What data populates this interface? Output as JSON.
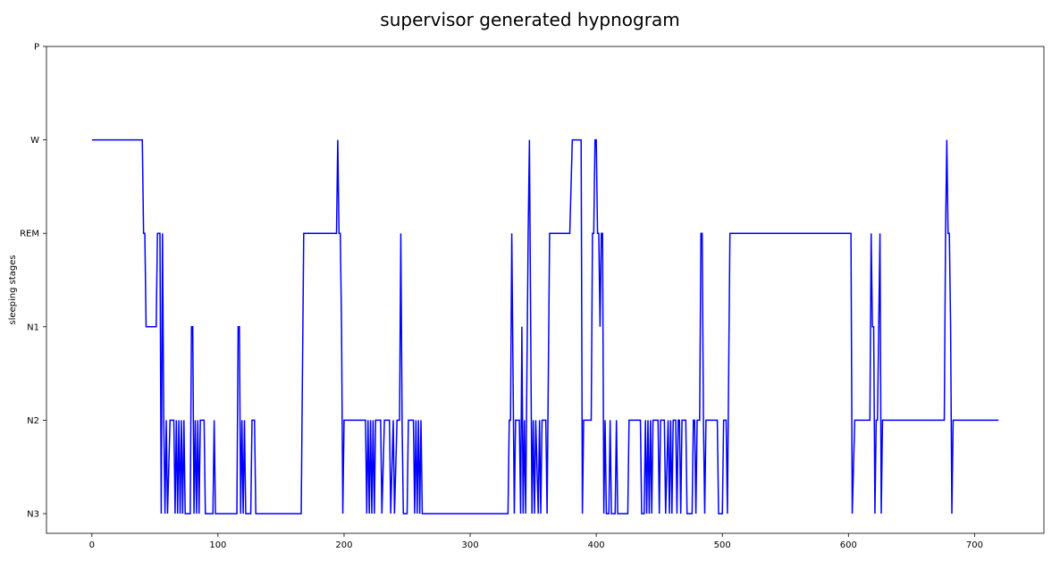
{
  "chart_data": {
    "type": "line",
    "title": "supervisor generated hypnogram",
    "xlabel": "",
    "ylabel": "sleeping stages",
    "xlim": [
      -36,
      755
    ],
    "ylim": [
      0,
      5
    ],
    "x_ticks": [
      0,
      100,
      200,
      300,
      400,
      500,
      600,
      700
    ],
    "y_ticks": [
      {
        "value": 0,
        "label": "N3"
      },
      {
        "value": 1,
        "label": "N2"
      },
      {
        "value": 2,
        "label": "N1"
      },
      {
        "value": 3,
        "label": "REM"
      },
      {
        "value": 4,
        "label": "W"
      },
      {
        "value": 5,
        "label": "P"
      }
    ],
    "grid": false,
    "series": [
      {
        "color": "#0000ff",
        "points": [
          [
            0,
            4
          ],
          [
            40,
            4
          ],
          [
            41,
            3
          ],
          [
            42,
            3
          ],
          [
            43,
            2
          ],
          [
            51,
            2
          ],
          [
            52,
            3
          ],
          [
            54,
            3
          ],
          [
            55,
            0
          ],
          [
            56,
            3
          ],
          [
            57,
            1
          ],
          [
            58,
            0
          ],
          [
            59,
            1
          ],
          [
            60,
            0
          ],
          [
            62,
            1
          ],
          [
            65,
            1
          ],
          [
            66,
            0
          ],
          [
            67,
            1
          ],
          [
            68,
            0
          ],
          [
            69,
            1
          ],
          [
            70,
            0
          ],
          [
            71,
            1
          ],
          [
            72,
            0
          ],
          [
            73,
            1
          ],
          [
            74,
            0
          ],
          [
            78,
            0
          ],
          [
            79,
            2
          ],
          [
            80,
            2
          ],
          [
            81,
            0
          ],
          [
            82,
            1
          ],
          [
            83,
            0
          ],
          [
            84,
            1
          ],
          [
            85,
            0
          ],
          [
            86,
            1
          ],
          [
            89,
            1
          ],
          [
            90,
            0
          ],
          [
            96,
            0
          ],
          [
            97,
            1
          ],
          [
            98,
            0
          ],
          [
            115,
            0
          ],
          [
            116,
            2
          ],
          [
            117,
            2
          ],
          [
            118,
            0
          ],
          [
            119,
            1
          ],
          [
            120,
            0
          ],
          [
            121,
            1
          ],
          [
            122,
            0
          ],
          [
            126,
            0
          ],
          [
            127,
            1
          ],
          [
            129,
            1
          ],
          [
            130,
            0
          ],
          [
            166,
            0
          ],
          [
            168,
            3
          ],
          [
            194,
            3
          ],
          [
            195,
            4
          ],
          [
            196,
            3
          ],
          [
            197,
            3
          ],
          [
            198,
            2
          ],
          [
            199,
            0
          ],
          [
            200,
            1
          ],
          [
            217,
            1
          ],
          [
            218,
            0
          ],
          [
            219,
            1
          ],
          [
            220,
            0
          ],
          [
            221,
            1
          ],
          [
            222,
            0
          ],
          [
            223,
            1
          ],
          [
            224,
            0
          ],
          [
            225,
            1
          ],
          [
            229,
            1
          ],
          [
            230,
            0
          ],
          [
            232,
            1
          ],
          [
            236,
            1
          ],
          [
            237,
            0
          ],
          [
            239,
            1
          ],
          [
            240,
            0
          ],
          [
            242,
            1
          ],
          [
            244,
            1
          ],
          [
            245,
            3
          ],
          [
            246,
            1
          ],
          [
            247,
            0
          ],
          [
            250,
            0
          ],
          [
            251,
            1
          ],
          [
            255,
            1
          ],
          [
            256,
            0
          ],
          [
            257,
            1
          ],
          [
            258,
            0
          ],
          [
            259,
            1
          ],
          [
            260,
            0
          ],
          [
            261,
            1
          ],
          [
            262,
            0
          ],
          [
            330,
            0
          ],
          [
            331,
            1
          ],
          [
            332,
            1
          ],
          [
            333,
            3
          ],
          [
            335,
            0
          ],
          [
            336,
            1
          ],
          [
            339,
            1
          ],
          [
            340,
            0
          ],
          [
            341,
            2
          ],
          [
            342,
            0
          ],
          [
            343,
            1
          ],
          [
            344,
            0
          ],
          [
            346,
            3
          ],
          [
            347,
            4
          ],
          [
            348,
            2
          ],
          [
            349,
            0
          ],
          [
            350,
            1
          ],
          [
            351,
            0
          ],
          [
            352,
            1
          ],
          [
            354,
            0
          ],
          [
            355,
            1
          ],
          [
            356,
            0
          ],
          [
            357,
            1
          ],
          [
            360,
            1
          ],
          [
            361,
            0
          ],
          [
            363,
            3
          ],
          [
            379,
            3
          ],
          [
            381,
            4
          ],
          [
            388,
            4
          ],
          [
            389,
            0
          ],
          [
            390,
            1
          ],
          [
            396,
            1
          ],
          [
            397,
            3
          ],
          [
            398,
            3
          ],
          [
            399,
            4
          ],
          [
            400,
            4
          ],
          [
            401,
            3
          ],
          [
            402,
            3
          ],
          [
            403,
            2
          ],
          [
            404,
            3
          ],
          [
            405,
            3
          ],
          [
            406,
            0
          ],
          [
            407,
            1
          ],
          [
            408,
            0
          ],
          [
            410,
            0
          ],
          [
            411,
            1
          ],
          [
            412,
            0
          ],
          [
            415,
            0
          ],
          [
            416,
            1
          ],
          [
            417,
            0
          ],
          [
            425,
            0
          ],
          [
            426,
            1
          ],
          [
            435,
            1
          ],
          [
            436,
            0
          ],
          [
            438,
            0
          ],
          [
            439,
            1
          ],
          [
            440,
            0
          ],
          [
            441,
            1
          ],
          [
            442,
            0
          ],
          [
            443,
            1
          ],
          [
            444,
            0
          ],
          [
            445,
            1
          ],
          [
            449,
            1
          ],
          [
            450,
            0
          ],
          [
            451,
            1
          ],
          [
            454,
            1
          ],
          [
            455,
            0
          ],
          [
            457,
            1
          ],
          [
            458,
            0
          ],
          [
            459,
            1
          ],
          [
            460,
            0
          ],
          [
            461,
            1
          ],
          [
            463,
            1
          ],
          [
            464,
            0
          ],
          [
            465,
            1
          ],
          [
            466,
            1
          ],
          [
            467,
            0
          ],
          [
            468,
            1
          ],
          [
            471,
            1
          ],
          [
            472,
            0
          ],
          [
            476,
            0
          ],
          [
            477,
            1
          ],
          [
            478,
            1
          ],
          [
            479,
            0
          ],
          [
            480,
            1
          ],
          [
            482,
            1
          ],
          [
            483,
            3
          ],
          [
            484,
            3
          ],
          [
            485,
            1
          ],
          [
            486,
            0
          ],
          [
            487,
            1
          ],
          [
            496,
            1
          ],
          [
            497,
            0
          ],
          [
            500,
            0
          ],
          [
            501,
            1
          ],
          [
            503,
            1
          ],
          [
            504,
            0
          ],
          [
            506,
            3
          ],
          [
            602,
            3
          ],
          [
            603,
            0
          ],
          [
            605,
            1
          ],
          [
            617,
            1
          ],
          [
            618,
            3
          ],
          [
            619,
            2
          ],
          [
            620,
            2
          ],
          [
            621,
            0
          ],
          [
            622,
            1
          ],
          [
            623,
            1
          ],
          [
            625,
            3
          ],
          [
            626,
            0
          ],
          [
            627,
            1
          ],
          [
            676,
            1
          ],
          [
            677,
            3
          ],
          [
            678,
            4
          ],
          [
            679,
            3
          ],
          [
            680,
            3
          ],
          [
            681,
            2
          ],
          [
            682,
            0
          ],
          [
            683,
            1
          ],
          [
            719,
            1
          ]
        ]
      }
    ]
  }
}
